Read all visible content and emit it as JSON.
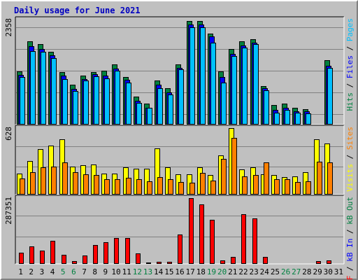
{
  "title": "Daily usage for June 2021",
  "colors": {
    "hits": "#008040",
    "files": "#0000ff",
    "pages": "#00c0ff",
    "visits": "#ffff00",
    "sites": "#ff8000",
    "kb_in": "#0000ff",
    "kb_out": "#008040",
    "kb_f": "#ff0000",
    "weekend_day": "#008040",
    "weekday": "#000000"
  },
  "chart_data": [
    {
      "type": "bar",
      "panel": "top",
      "y_max_label": "2358",
      "ylim": [
        0,
        2358
      ],
      "categories": [
        "1",
        "2",
        "3",
        "4",
        "5",
        "6",
        "7",
        "8",
        "9",
        "10",
        "11",
        "12",
        "13",
        "14",
        "15",
        "16",
        "17",
        "18",
        "19",
        "20",
        "21",
        "22",
        "23",
        "24",
        "25",
        "26",
        "27",
        "28",
        "29",
        "30",
        "31"
      ],
      "weekend_days": [
        5,
        6,
        12,
        13,
        19,
        20,
        26,
        27
      ],
      "right_label": [
        {
          "text": "Hits",
          "color": "#008040"
        },
        {
          "text": " / ",
          "color": "#000000"
        },
        {
          "text": "Files",
          "color": "#0000ff"
        },
        {
          "text": " / ",
          "color": "#000000"
        },
        {
          "text": "Pages",
          "color": "#00c0ff"
        }
      ],
      "series": [
        {
          "name": "Hits",
          "values": [
            1180,
            1850,
            1780,
            1620,
            1160,
            880,
            1090,
            1160,
            1200,
            1330,
            1050,
            620,
            470,
            980,
            810,
            1330,
            2300,
            2290,
            2020,
            1180,
            1680,
            1850,
            1890,
            850,
            430,
            470,
            370,
            340,
            0,
            1420,
            0
          ]
        },
        {
          "name": "Files",
          "values": [
            1100,
            1740,
            1680,
            1540,
            1080,
            790,
            1010,
            1120,
            1090,
            1240,
            1000,
            520,
            380,
            880,
            720,
            1250,
            2220,
            2220,
            1950,
            1060,
            1560,
            1750,
            1820,
            800,
            320,
            370,
            300,
            290,
            0,
            1300,
            0
          ]
        },
        {
          "name": "Pages",
          "values": [
            1060,
            1630,
            1620,
            1480,
            1010,
            740,
            970,
            1070,
            1020,
            1190,
            930,
            480,
            370,
            800,
            660,
            1220,
            2160,
            2160,
            1810,
            930,
            1520,
            1710,
            1780,
            760,
            260,
            320,
            270,
            250,
            0,
            1250,
            0
          ]
        }
      ]
    },
    {
      "type": "bar",
      "panel": "middle",
      "y_max_label": "628",
      "ylim": [
        0,
        628
      ],
      "categories": [
        "1",
        "2",
        "3",
        "4",
        "5",
        "6",
        "7",
        "8",
        "9",
        "10",
        "11",
        "12",
        "13",
        "14",
        "15",
        "16",
        "17",
        "18",
        "19",
        "20",
        "21",
        "22",
        "23",
        "24",
        "25",
        "26",
        "27",
        "28",
        "29",
        "30",
        "31"
      ],
      "right_label": [
        {
          "text": "Visits",
          "color": "#ffff00"
        },
        {
          "text": " / ",
          "color": "#000000"
        },
        {
          "text": "Sites",
          "color": "#ff8000"
        }
      ],
      "series": [
        {
          "name": "Visits",
          "values": [
            195,
            310,
            420,
            450,
            510,
            260,
            270,
            280,
            195,
            195,
            250,
            240,
            240,
            430,
            250,
            190,
            190,
            250,
            180,
            360,
            618,
            230,
            255,
            190,
            180,
            165,
            170,
            210,
            510,
            470,
            0
          ]
        },
        {
          "name": "Sites",
          "values": [
            150,
            210,
            250,
            260,
            300,
            205,
            190,
            180,
            145,
            140,
            155,
            140,
            120,
            160,
            145,
            115,
            110,
            200,
            130,
            330,
            525,
            170,
            180,
            300,
            145,
            145,
            115,
            125,
            305,
            300,
            0
          ]
        }
      ]
    },
    {
      "type": "bar",
      "panel": "bottom",
      "y_max_label": "287351",
      "ylim": [
        0,
        287351
      ],
      "categories": [
        "1",
        "2",
        "3",
        "4",
        "5",
        "6",
        "7",
        "8",
        "9",
        "10",
        "11",
        "12",
        "13",
        "14",
        "15",
        "16",
        "17",
        "18",
        "19",
        "20",
        "21",
        "22",
        "23",
        "24",
        "25",
        "26",
        "27",
        "28",
        "29",
        "30",
        "31"
      ],
      "right_label": [
        {
          "text": "kB F",
          "color": "#ff0000"
        },
        {
          "text": " / ",
          "color": "#000000"
        },
        {
          "text": "kB In",
          "color": "#0000ff"
        },
        {
          "text": " / ",
          "color": "#000000"
        },
        {
          "text": "kB Out",
          "color": "#008040"
        }
      ],
      "series": [
        {
          "name": "kB F",
          "values": [
            48000,
            76000,
            56000,
            100000,
            38000,
            12000,
            36000,
            81000,
            93000,
            112000,
            112000,
            45000,
            7000,
            9000,
            8000,
            125000,
            282000,
            253000,
            190000,
            14000,
            30000,
            213000,
            194000,
            29000,
            4000,
            4000,
            4000,
            4000,
            12000,
            15000,
            0
          ]
        }
      ]
    }
  ]
}
